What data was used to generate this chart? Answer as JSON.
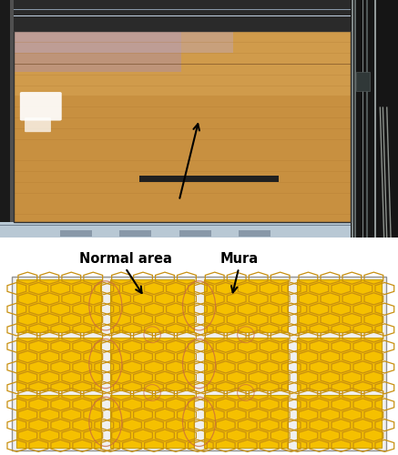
{
  "fig_width": 4.37,
  "fig_height": 5.0,
  "dpi": 100,
  "bg_color": "#ffffff",
  "label_normal_area": "Normal area",
  "label_mura": "Mura",
  "label_fontsize": 10.5,
  "grid_rows": 3,
  "grid_cols": 4,
  "cell_color": "#f5c000",
  "cell_border_color": "#c8a000",
  "hex_color": "#c89010",
  "mura_circle_color": "#c86840",
  "schema_outer_border": "#909090",
  "schema_bg": "#f0f0f0"
}
